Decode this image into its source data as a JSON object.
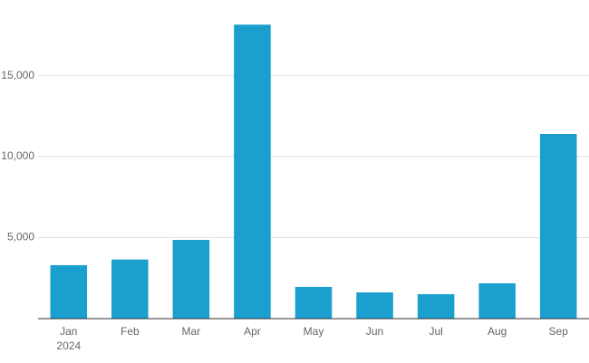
{
  "chart_data": {
    "type": "bar",
    "categories": [
      "Jan",
      "Feb",
      "Mar",
      "Apr",
      "May",
      "Jun",
      "Jul",
      "Aug",
      "Sep"
    ],
    "year_label": "2024",
    "values": [
      3300,
      3650,
      4860,
      18150,
      1960,
      1620,
      1510,
      2180,
      11400
    ],
    "color": "#1a9fcf",
    "ylim": [
      0,
      19000
    ],
    "yticks": [
      {
        "value": 5000,
        "label": "5,000"
      },
      {
        "value": 10000,
        "label": "10,000"
      },
      {
        "value": 15000,
        "label": "15,000"
      }
    ],
    "grid": true
  }
}
